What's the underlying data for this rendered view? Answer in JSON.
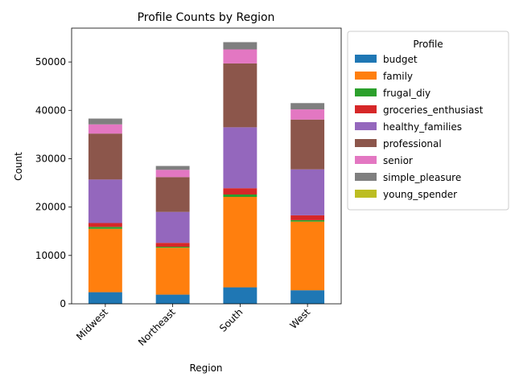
{
  "chart_data": {
    "type": "bar",
    "stacked": true,
    "title": "Profile Counts by Region",
    "xlabel": "Region",
    "ylabel": "Count",
    "categories": [
      "Midwest",
      "Northeast",
      "South",
      "West"
    ],
    "ylim": [
      0,
      57000
    ],
    "yticks": [
      0,
      10000,
      20000,
      30000,
      40000,
      50000
    ],
    "legend": {
      "title": "Profile",
      "placement": "outside-right"
    },
    "series": [
      {
        "name": "budget",
        "color": "#1f77b4",
        "values": [
          2400,
          1900,
          3400,
          2800
        ]
      },
      {
        "name": "family",
        "color": "#ff7f0e",
        "values": [
          13100,
          9700,
          18700,
          14200
        ]
      },
      {
        "name": "frugal_diy",
        "color": "#2ca02c",
        "values": [
          400,
          200,
          500,
          300
        ]
      },
      {
        "name": "groceries_enthusiast",
        "color": "#d62728",
        "values": [
          800,
          800,
          1300,
          1000
        ]
      },
      {
        "name": "healthy_families",
        "color": "#9467bd",
        "values": [
          9000,
          6400,
          12600,
          9500
        ]
      },
      {
        "name": "professional",
        "color": "#8c564b",
        "values": [
          9500,
          7200,
          13200,
          10300
        ]
      },
      {
        "name": "senior",
        "color": "#e377c2",
        "values": [
          1900,
          1500,
          2900,
          2100
        ]
      },
      {
        "name": "simple_pleasure",
        "color": "#7f7f7f",
        "values": [
          1200,
          800,
          1500,
          1300
        ]
      },
      {
        "name": "young_spender",
        "color": "#bcbd22",
        "values": [
          0,
          0,
          0,
          0
        ]
      }
    ]
  }
}
